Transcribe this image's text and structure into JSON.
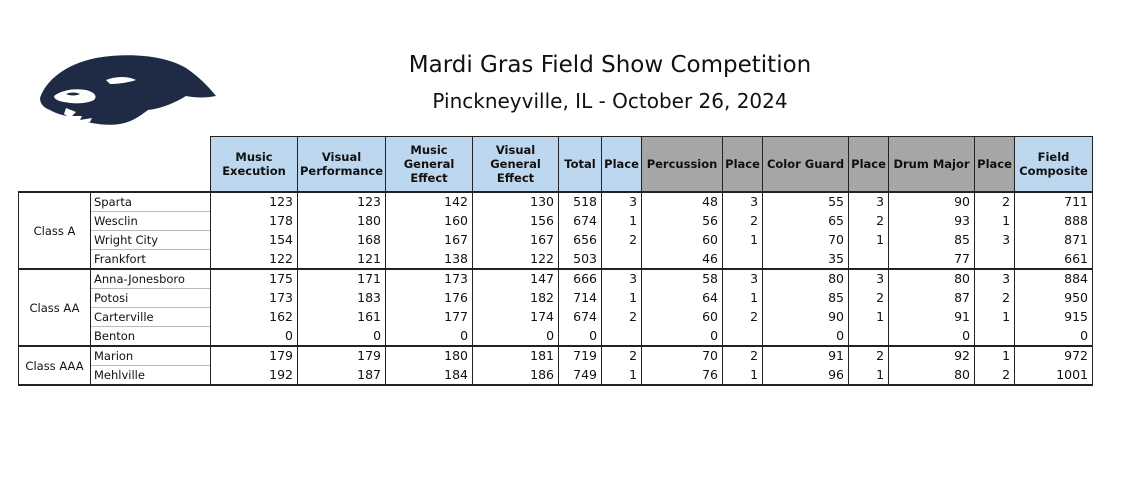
{
  "title": "Mardi Gras Field Show Competition",
  "subtitle": "Pinckneyville, IL - October 26, 2024",
  "logo": {
    "icon": "panther-head-icon",
    "color": "#1f2a44"
  },
  "colors": {
    "header_blue": "#bdd7ee",
    "header_gray": "#a6a6a6"
  },
  "headers": [
    {
      "label": "Music Execution",
      "style": "blue"
    },
    {
      "label": "Visual Performance",
      "style": "blue"
    },
    {
      "label": "Music General Effect",
      "style": "blue"
    },
    {
      "label": "Visual General Effect",
      "style": "blue"
    },
    {
      "label": "Total",
      "style": "blue"
    },
    {
      "label": "Place",
      "style": "blue"
    },
    {
      "label": "Percussion",
      "style": "gray"
    },
    {
      "label": "Place",
      "style": "gray"
    },
    {
      "label": "Color Guard",
      "style": "gray"
    },
    {
      "label": "Place",
      "style": "gray"
    },
    {
      "label": "Drum Major",
      "style": "gray"
    },
    {
      "label": "Place",
      "style": "gray"
    },
    {
      "label": "Field Composite",
      "style": "blue"
    }
  ],
  "classes": [
    {
      "name": "Class A",
      "rows": [
        {
          "school": "Sparta",
          "values": [
            "123",
            "123",
            "142",
            "130",
            "518",
            "3",
            "48",
            "3",
            "55",
            "3",
            "90",
            "2",
            "711"
          ]
        },
        {
          "school": "Wesclin",
          "values": [
            "178",
            "180",
            "160",
            "156",
            "674",
            "1",
            "56",
            "2",
            "65",
            "2",
            "93",
            "1",
            "888"
          ]
        },
        {
          "school": "Wright City",
          "values": [
            "154",
            "168",
            "167",
            "167",
            "656",
            "2",
            "60",
            "1",
            "70",
            "1",
            "85",
            "3",
            "871"
          ]
        },
        {
          "school": "Frankfort",
          "values": [
            "122",
            "121",
            "138",
            "122",
            "503",
            "",
            "46",
            "",
            "35",
            "",
            "77",
            "",
            "661"
          ]
        }
      ]
    },
    {
      "name": "Class AA",
      "rows": [
        {
          "school": "Anna-Jonesboro",
          "values": [
            "175",
            "171",
            "173",
            "147",
            "666",
            "3",
            "58",
            "3",
            "80",
            "3",
            "80",
            "3",
            "884"
          ]
        },
        {
          "school": "Potosi",
          "values": [
            "173",
            "183",
            "176",
            "182",
            "714",
            "1",
            "64",
            "1",
            "85",
            "2",
            "87",
            "2",
            "950"
          ]
        },
        {
          "school": "Carterville",
          "values": [
            "162",
            "161",
            "177",
            "174",
            "674",
            "2",
            "60",
            "2",
            "90",
            "1",
            "91",
            "1",
            "915"
          ]
        },
        {
          "school": "Benton",
          "values": [
            "0",
            "0",
            "0",
            "0",
            "0",
            "",
            "0",
            "",
            "0",
            "",
            "0",
            "",
            "0"
          ]
        }
      ]
    },
    {
      "name": "Class AAA",
      "rows": [
        {
          "school": "Marion",
          "values": [
            "179",
            "179",
            "180",
            "181",
            "719",
            "2",
            "70",
            "2",
            "91",
            "2",
            "92",
            "1",
            "972"
          ]
        },
        {
          "school": "Mehlville",
          "values": [
            "192",
            "187",
            "184",
            "186",
            "749",
            "1",
            "76",
            "1",
            "96",
            "1",
            "80",
            "2",
            "1001"
          ]
        }
      ]
    }
  ]
}
